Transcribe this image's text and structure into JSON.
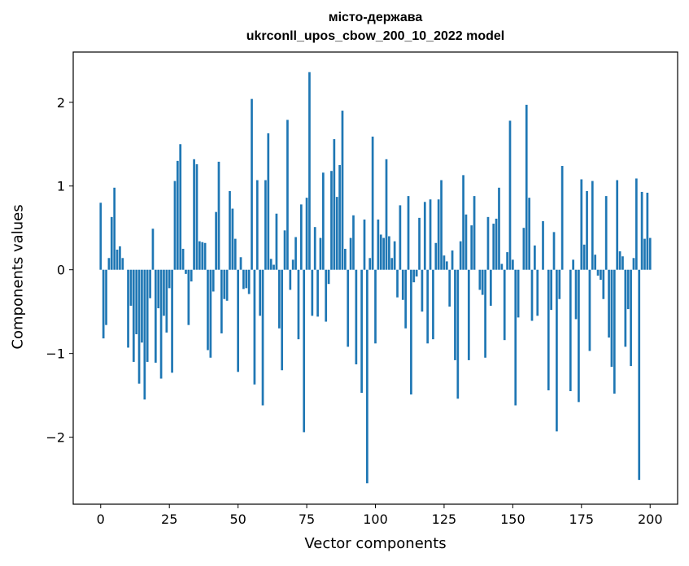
{
  "chart_data": {
    "type": "bar",
    "title": "місто-держава",
    "subtitle": "ukrconll_upos_cbow_200_10_2022 model",
    "xlabel": "Vector components",
    "ylabel": "Components values",
    "xlim": [
      -10,
      210
    ],
    "ylim": [
      -2.8,
      2.6
    ],
    "xticks": [
      0,
      25,
      50,
      75,
      100,
      125,
      150,
      175,
      200
    ],
    "yticks": [
      -2,
      -1,
      0,
      1,
      2
    ],
    "ytick_labels": [
      "−2",
      "−1",
      "0",
      "1",
      "2"
    ],
    "grid": false,
    "bar_color": "#1f77b4",
    "values": [
      0.8,
      -0.82,
      -0.66,
      0.14,
      0.63,
      0.98,
      0.24,
      0.28,
      0.14,
      0.0,
      -0.93,
      -0.43,
      -1.1,
      -0.77,
      -1.36,
      -0.87,
      -1.55,
      -1.1,
      -0.34,
      0.49,
      -1.11,
      -0.46,
      -1.3,
      -0.55,
      -0.75,
      -0.22,
      -1.23,
      1.06,
      1.3,
      1.5,
      0.25,
      -0.05,
      -0.66,
      -0.14,
      1.32,
      1.26,
      0.34,
      0.33,
      0.32,
      -0.96,
      -1.05,
      -0.26,
      0.69,
      1.29,
      -0.76,
      -0.35,
      -0.37,
      0.94,
      0.73,
      0.37,
      -1.22,
      0.15,
      -0.23,
      -0.22,
      -0.29,
      2.04,
      -1.37,
      1.07,
      -0.55,
      -1.62,
      1.07,
      1.63,
      0.13,
      0.06,
      0.67,
      -0.7,
      -1.2,
      0.47,
      1.79,
      -0.24,
      0.12,
      0.39,
      -0.83,
      0.78,
      -1.94,
      0.86,
      2.36,
      -0.55,
      0.51,
      -0.56,
      0.38,
      1.16,
      -0.62,
      -0.17,
      1.18,
      1.56,
      0.87,
      1.25,
      1.9,
      0.25,
      -0.92,
      0.38,
      0.65,
      -1.13,
      0.0,
      -1.47,
      0.6,
      -2.55,
      0.14,
      1.59,
      -0.88,
      0.6,
      0.42,
      0.38,
      1.32,
      0.4,
      0.14,
      0.34,
      -0.33,
      0.77,
      -0.36,
      -0.7,
      0.88,
      -1.49,
      -0.15,
      -0.08,
      0.62,
      -0.5,
      0.81,
      -0.88,
      0.84,
      -0.83,
      0.32,
      0.84,
      1.07,
      0.17,
      0.1,
      -0.44,
      0.23,
      -1.08,
      -1.54,
      0.34,
      1.13,
      0.66,
      -1.08,
      0.53,
      0.88,
      0.0,
      -0.24,
      -0.3,
      -1.05,
      0.63,
      -0.43,
      0.55,
      0.61,
      0.98,
      0.07,
      -0.84,
      0.21,
      1.78,
      0.12,
      -1.62,
      -0.57,
      0.0,
      0.5,
      1.97,
      0.86,
      -0.61,
      0.29,
      -0.55,
      0.0,
      0.58,
      0.0,
      -1.44,
      -0.48,
      0.45,
      -1.93,
      -0.35,
      1.24,
      0.0,
      0.0,
      -1.45,
      0.12,
      -0.59,
      -1.58,
      1.08,
      0.3,
      0.94,
      -0.97,
      1.06,
      0.18,
      -0.07,
      -0.12,
      -0.35,
      0.88,
      -0.81,
      -1.16,
      -1.48,
      1.07,
      0.22,
      0.16,
      -0.92,
      -0.47,
      -1.15,
      0.14,
      1.09,
      -2.51,
      0.93,
      0.37,
      0.92,
      0.38
    ]
  }
}
